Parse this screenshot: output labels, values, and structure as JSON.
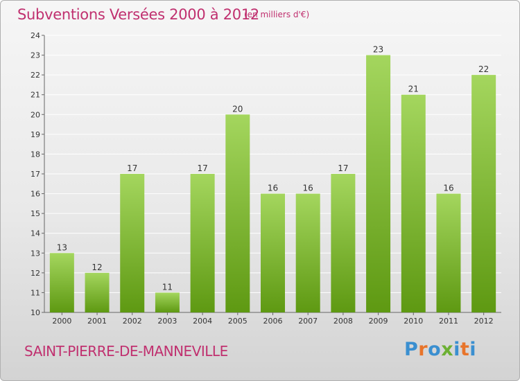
{
  "header": {
    "title": "Subventions Versées 2000 à 2012",
    "unit": "(en milliers d'€)"
  },
  "footer": {
    "commune": "SAINT-PIERRE-DE-MANNEVILLE",
    "logo": "Proxiti",
    "logo_colors": [
      "#3a8fd0",
      "#e8742a",
      "#3a8fd0",
      "#6cb033",
      "#3a8fd0",
      "#e8742a",
      "#3a8fd0"
    ]
  },
  "colors": {
    "accent": "#c0306f",
    "bar_top": "#9fd25a",
    "bar_bottom": "#5f9a12",
    "grid": "#ffffff",
    "axis": "#666666"
  },
  "chart_data": {
    "type": "bar",
    "title": "Subventions Versées 2000 à 2012",
    "subtitle": "(en milliers d'€)",
    "categories": [
      "2000",
      "2001",
      "2002",
      "2003",
      "2004",
      "2005",
      "2006",
      "2007",
      "2008",
      "2009",
      "2010",
      "2011",
      "2012"
    ],
    "values": [
      13,
      12,
      17,
      11,
      17,
      20,
      16,
      16,
      17,
      23,
      21,
      16,
      22
    ],
    "ylim": [
      10,
      24
    ],
    "yticks": [
      10,
      11,
      12,
      13,
      14,
      15,
      16,
      17,
      18,
      19,
      20,
      21,
      22,
      23,
      24
    ],
    "grid": true,
    "data_labels": true
  }
}
